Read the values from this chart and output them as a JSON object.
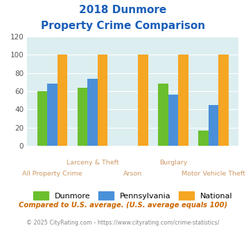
{
  "title_line1": "2018 Dunmore",
  "title_line2": "Property Crime Comparison",
  "categories": [
    "All Property Crime",
    "Larceny & Theft",
    "Arson",
    "Burglary",
    "Motor Vehicle Theft"
  ],
  "top_labels": [
    "",
    "Larceny & Theft",
    "",
    "Burglary",
    ""
  ],
  "bottom_labels": [
    "All Property Crime",
    "",
    "Arson",
    "",
    "Motor Vehicle Theft"
  ],
  "dunmore": [
    60,
    64,
    0,
    68,
    17
  ],
  "pennsylvania": [
    68,
    74,
    0,
    56,
    45
  ],
  "national": [
    100,
    100,
    100,
    100,
    100
  ],
  "colors": {
    "dunmore": "#6abf2e",
    "pennsylvania": "#4a90d9",
    "national": "#f5a623"
  },
  "ylim": [
    0,
    120
  ],
  "yticks": [
    0,
    20,
    40,
    60,
    80,
    100,
    120
  ],
  "title_color": "#1a5eb8",
  "subtitle_note": "Compared to U.S. average. (U.S. average equals 100)",
  "footnote": "© 2025 CityRating.com - https://www.cityrating.com/crime-statistics/",
  "note_color": "#cc6600",
  "footnote_color": "#888888",
  "label_color": "#cc9966",
  "plot_bg": "#dceef0"
}
